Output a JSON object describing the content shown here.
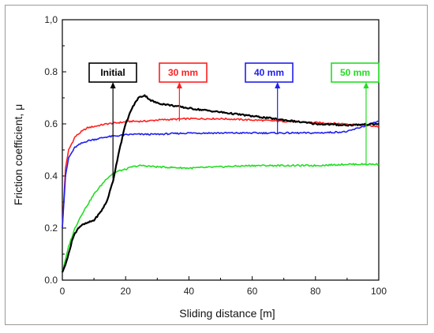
{
  "chart_data": {
    "type": "line",
    "title": "",
    "xlabel": "Sliding distance [m]",
    "ylabel": "Friction coefficient, μ",
    "xlim": [
      0,
      100
    ],
    "ylim": [
      0,
      1.0
    ],
    "x_ticks": [
      0,
      20,
      40,
      60,
      80,
      100
    ],
    "x_tick_labels": [
      "0",
      "20",
      "40",
      "60",
      "80",
      "100"
    ],
    "y_ticks": [
      0,
      0.2,
      0.4,
      0.6,
      0.8,
      1.0
    ],
    "y_tick_labels": [
      "0.0",
      "0.2",
      "0.4",
      "0.6",
      "0.8",
      "1,0"
    ],
    "grid": false,
    "series": [
      {
        "name": "30 mm",
        "color": "#ff2020",
        "label": "30 mm",
        "label_anchor": [
          37,
          0.61
        ],
        "x": [
          0,
          1,
          2,
          4,
          6,
          8,
          10,
          14,
          18,
          22,
          26,
          30,
          40,
          50,
          60,
          70,
          80,
          90,
          100
        ],
        "y": [
          0.2,
          0.43,
          0.5,
          0.55,
          0.57,
          0.585,
          0.59,
          0.6,
          0.605,
          0.61,
          0.61,
          0.615,
          0.62,
          0.62,
          0.615,
          0.61,
          0.605,
          0.6,
          0.59
        ]
      },
      {
        "name": "40 mm",
        "color": "#2020ee",
        "label": "40 mm",
        "label_anchor": [
          68,
          0.56
        ],
        "x": [
          0,
          1,
          2,
          4,
          6,
          8,
          10,
          14,
          18,
          22,
          30,
          40,
          50,
          60,
          70,
          80,
          90,
          95,
          100
        ],
        "y": [
          0.2,
          0.4,
          0.47,
          0.51,
          0.525,
          0.535,
          0.54,
          0.55,
          0.555,
          0.56,
          0.56,
          0.565,
          0.565,
          0.565,
          0.565,
          0.565,
          0.57,
          0.59,
          0.61
        ]
      },
      {
        "name": "50 mm",
        "color": "#22dd22",
        "label": "50 mm",
        "label_anchor": [
          96,
          0.44
        ],
        "x": [
          0,
          1,
          2,
          4,
          6,
          8,
          10,
          12,
          14,
          16,
          18,
          20,
          22,
          25,
          30,
          40,
          50,
          60,
          70,
          80,
          90,
          100
        ],
        "y": [
          0.03,
          0.08,
          0.13,
          0.2,
          0.25,
          0.29,
          0.33,
          0.36,
          0.39,
          0.41,
          0.42,
          0.425,
          0.435,
          0.44,
          0.435,
          0.43,
          0.435,
          0.44,
          0.44,
          0.44,
          0.445,
          0.445
        ]
      },
      {
        "name": "Initial",
        "color": "#000000",
        "label": "Initial",
        "label_anchor": [
          16,
          0.39
        ],
        "x": [
          0,
          1,
          2,
          3,
          4,
          5,
          6,
          8,
          10,
          12,
          14,
          16,
          18,
          20,
          22,
          24,
          26,
          28,
          30,
          35,
          40,
          50,
          60,
          70,
          80,
          90,
          100
        ],
        "y": [
          0.03,
          0.06,
          0.1,
          0.15,
          0.18,
          0.2,
          0.21,
          0.22,
          0.23,
          0.26,
          0.3,
          0.38,
          0.5,
          0.6,
          0.66,
          0.7,
          0.71,
          0.69,
          0.68,
          0.67,
          0.66,
          0.645,
          0.63,
          0.615,
          0.6,
          0.595,
          0.6
        ]
      }
    ]
  }
}
